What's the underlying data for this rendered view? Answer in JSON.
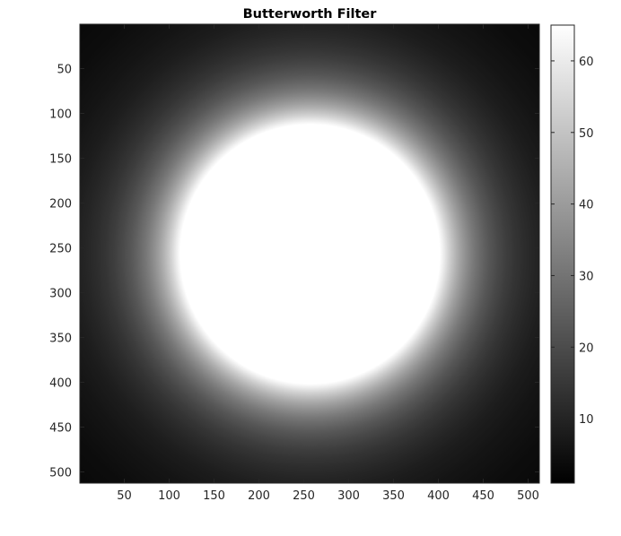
{
  "chart_data": [
    {
      "type": "heatmap",
      "title": "Butterworth Filter",
      "image_size": [
        512,
        512
      ],
      "center": [
        257,
        257
      ],
      "colormap": "gray",
      "filter": {
        "cutoff_radius": 110,
        "order": 2,
        "peak": 65,
        "floor": 1
      },
      "x_ticks": [
        50,
        100,
        150,
        200,
        250,
        300,
        350,
        400,
        450,
        500
      ],
      "y_ticks": [
        50,
        100,
        150,
        200,
        250,
        300,
        350,
        400,
        450,
        500
      ],
      "xlim": [
        0.5,
        512.5
      ],
      "ylim": [
        0.5,
        512.5
      ],
      "y_direction": "reverse",
      "grid": false
    },
    {
      "type": "colorbar",
      "colormap": "gray",
      "range": [
        1,
        65
      ],
      "ticks": [
        10,
        20,
        30,
        40,
        50,
        60
      ]
    }
  ]
}
